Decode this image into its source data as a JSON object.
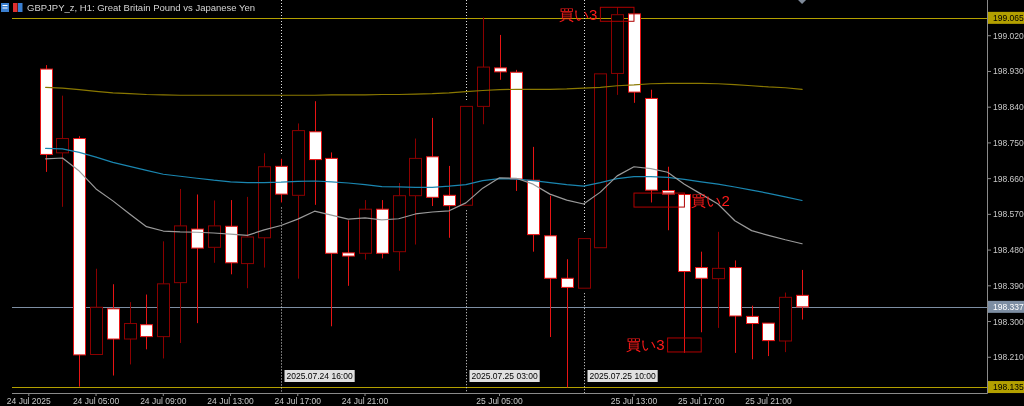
{
  "chart_data": {
    "type": "candlestick",
    "title": "GBPJPY_z, H1: Great Britain Pound vs Japanese Yen",
    "x": [
      "2025-07-24T02:00",
      "2025-07-24T03:00",
      "2025-07-24T04:00",
      "2025-07-24T05:00",
      "2025-07-24T06:00",
      "2025-07-24T07:00",
      "2025-07-24T08:00",
      "2025-07-24T09:00",
      "2025-07-24T10:00",
      "2025-07-24T11:00",
      "2025-07-24T12:00",
      "2025-07-24T13:00",
      "2025-07-24T14:00",
      "2025-07-24T15:00",
      "2025-07-24T16:00",
      "2025-07-24T17:00",
      "2025-07-24T18:00",
      "2025-07-24T19:00",
      "2025-07-24T20:00",
      "2025-07-24T21:00",
      "2025-07-24T22:00",
      "2025-07-24T23:00",
      "2025-07-25T00:00",
      "2025-07-25T01:00",
      "2025-07-25T02:00",
      "2025-07-25T03:00",
      "2025-07-25T04:00",
      "2025-07-25T05:00",
      "2025-07-25T06:00",
      "2025-07-25T07:00",
      "2025-07-25T08:00",
      "2025-07-25T09:00",
      "2025-07-25T10:00",
      "2025-07-25T11:00",
      "2025-07-25T12:00",
      "2025-07-25T13:00",
      "2025-07-25T14:00",
      "2025-07-25T15:00",
      "2025-07-25T16:00",
      "2025-07-25T17:00",
      "2025-07-25T18:00",
      "2025-07-25T19:00",
      "2025-07-25T20:00",
      "2025-07-25T21:00",
      "2025-07-25T22:00",
      "2025-07-25T23:00"
    ],
    "ohlc": [
      [
        198.936,
        198.946,
        198.677,
        198.721
      ],
      [
        198.725,
        198.869,
        198.589,
        198.761
      ],
      [
        198.761,
        198.767,
        198.136,
        198.216
      ],
      [
        198.217,
        198.433,
        198.217,
        198.336
      ],
      [
        198.332,
        198.394,
        198.164,
        198.256
      ],
      [
        198.256,
        198.349,
        198.192,
        198.295
      ],
      [
        198.292,
        198.368,
        198.23,
        198.262
      ],
      [
        198.262,
        198.502,
        198.207,
        198.395
      ],
      [
        198.398,
        198.634,
        198.246,
        198.541
      ],
      [
        198.533,
        198.62,
        198.296,
        198.485
      ],
      [
        198.487,
        198.605,
        198.448,
        198.541
      ],
      [
        198.54,
        198.606,
        198.419,
        198.448
      ],
      [
        198.446,
        198.614,
        198.384,
        198.513
      ],
      [
        198.511,
        198.724,
        198.436,
        198.69
      ],
      [
        198.691,
        198.71,
        198.6,
        198.621
      ],
      [
        198.618,
        198.799,
        198.408,
        198.781
      ],
      [
        198.778,
        198.855,
        198.594,
        198.708
      ],
      [
        198.711,
        198.726,
        198.288,
        198.472
      ],
      [
        198.473,
        198.555,
        198.39,
        198.465
      ],
      [
        198.472,
        198.606,
        198.456,
        198.583
      ],
      [
        198.583,
        198.606,
        198.459,
        198.472
      ],
      [
        198.476,
        198.649,
        198.428,
        198.617
      ],
      [
        198.617,
        198.761,
        198.494,
        198.711
      ],
      [
        198.715,
        198.813,
        198.591,
        198.613
      ],
      [
        198.618,
        198.692,
        198.511,
        198.592
      ],
      [
        198.593,
        198.842,
        198.593,
        198.842
      ],
      [
        198.842,
        199.066,
        198.797,
        198.941
      ],
      [
        198.939,
        199.022,
        198.909,
        198.929
      ],
      [
        198.928,
        198.934,
        198.629,
        198.659
      ],
      [
        198.656,
        198.74,
        198.476,
        198.519
      ],
      [
        198.516,
        198.617,
        198.261,
        198.409
      ],
      [
        198.409,
        198.457,
        198.134,
        198.386
      ],
      [
        198.384,
        198.509,
        198.384,
        198.509
      ],
      [
        198.486,
        198.924,
        198.486,
        198.924
      ],
      [
        198.925,
        199.092,
        198.871,
        199.073
      ],
      [
        199.075,
        199.075,
        198.851,
        198.878
      ],
      [
        198.862,
        198.884,
        198.6,
        198.631
      ],
      [
        198.63,
        198.69,
        198.53,
        198.621
      ],
      [
        198.62,
        198.62,
        198.221,
        198.426
      ],
      [
        198.436,
        198.476,
        198.273,
        198.409
      ],
      [
        198.408,
        198.526,
        198.284,
        198.434
      ],
      [
        198.436,
        198.454,
        198.221,
        198.314
      ],
      [
        198.313,
        198.34,
        198.205,
        198.295
      ],
      [
        198.296,
        198.296,
        198.213,
        198.252
      ],
      [
        198.251,
        198.373,
        198.223,
        198.361
      ],
      [
        198.366,
        198.43,
        198.305,
        198.337
      ]
    ],
    "colors": [
      "#e81414",
      "#8b0000",
      "#e81414",
      "#8b0000",
      "#e81414",
      "#8b0000",
      "#e81414",
      "#8b0000",
      "#8b0000",
      "#e81414",
      "#8b0000",
      "#e81414",
      "#8b0000",
      "#8b0000",
      "#e81414",
      "#8b0000",
      "#e81414",
      "#e81414",
      "#e81414",
      "#8b0000",
      "#e81414",
      "#8b0000",
      "#8b0000",
      "#e81414",
      "#e81414",
      "#8b0000",
      "#8b0000",
      "#e81414",
      "#e81414",
      "#e81414",
      "#e81414",
      "#e81414",
      "#8b0000",
      "#8b0000",
      "#8b0000",
      "#e81414",
      "#e81414",
      "#e81414",
      "#e81414",
      "#e81414",
      "#8b0000",
      "#e81414",
      "#e81414",
      "#e81414",
      "#8b0000",
      "#e81414"
    ],
    "series": [
      {
        "type": "line",
        "color": "#8a7800",
        "values": [
          198.89,
          198.888,
          198.884,
          198.88,
          198.876,
          198.874,
          198.872,
          198.871,
          198.87,
          198.87,
          198.87,
          198.87,
          198.87,
          198.87,
          198.87,
          198.87,
          198.87,
          198.871,
          198.871,
          198.871,
          198.872,
          198.872,
          198.873,
          198.874,
          198.876,
          198.879,
          198.882,
          198.884,
          198.885,
          198.885,
          198.885,
          198.886,
          198.888,
          198.89,
          198.894,
          198.896,
          198.899,
          198.9,
          198.9,
          198.9,
          198.899,
          198.897,
          198.894,
          198.891,
          198.889,
          198.885
        ]
      },
      {
        "type": "line",
        "color": "#1a86b0",
        "values": [
          198.736,
          198.735,
          198.726,
          198.714,
          198.701,
          198.691,
          198.681,
          198.671,
          198.666,
          198.661,
          198.656,
          198.652,
          198.65,
          198.65,
          198.651,
          198.653,
          198.654,
          198.652,
          198.649,
          198.645,
          198.64,
          198.639,
          198.638,
          198.638,
          198.641,
          198.645,
          198.655,
          198.66,
          198.659,
          198.655,
          198.65,
          198.645,
          198.641,
          198.65,
          198.66,
          198.665,
          198.665,
          198.663,
          198.658,
          198.652,
          198.646,
          198.639,
          198.631,
          198.623,
          198.614,
          198.605
        ]
      },
      {
        "type": "line",
        "color": "#9a9a9a",
        "values": [
          198.71,
          198.712,
          198.679,
          198.634,
          198.604,
          198.571,
          198.539,
          198.528,
          198.526,
          198.525,
          198.523,
          198.52,
          198.517,
          198.531,
          198.542,
          198.558,
          198.578,
          198.568,
          198.558,
          198.561,
          198.556,
          198.559,
          198.571,
          198.576,
          198.579,
          198.599,
          198.636,
          198.662,
          198.661,
          198.646,
          198.621,
          198.606,
          198.596,
          198.626,
          198.667,
          198.69,
          198.685,
          198.676,
          198.646,
          198.621,
          198.596,
          198.554,
          198.529,
          198.517,
          198.506,
          198.496
        ]
      }
    ],
    "xlim": [
      "2025-07-24T00:00",
      "2025-07-26T10:00"
    ],
    "xticks": [
      {
        "value": "2025-07-24T01:00",
        "label": "24 Jul 2025"
      },
      {
        "value": "2025-07-24T05:00",
        "label": "24 Jul 05:00"
      },
      {
        "value": "2025-07-24T09:00",
        "label": "24 Jul 09:00"
      },
      {
        "value": "2025-07-24T13:00",
        "label": "24 Jul 13:00"
      },
      {
        "value": "2025-07-24T17:00",
        "label": "24 Jul 17:00"
      },
      {
        "value": "2025-07-24T21:00",
        "label": "24 Jul 21:00"
      },
      {
        "value": "2025-07-25T05:00",
        "label": "25 Jul 05:00"
      },
      {
        "value": "2025-07-25T13:00",
        "label": "25 Jul 13:00"
      },
      {
        "value": "2025-07-25T17:00",
        "label": "25 Jul 17:00"
      },
      {
        "value": "2025-07-25T21:00",
        "label": "25 Jul 21:00"
      }
    ],
    "ylim": [
      198.12,
      199.11
    ],
    "yticks": [
      {
        "value": 199.02,
        "label": "199.020"
      },
      {
        "value": 198.93,
        "label": "198.930"
      },
      {
        "value": 198.84,
        "label": "198.840"
      },
      {
        "value": 198.75,
        "label": "198.750"
      },
      {
        "value": 198.66,
        "label": "198.660"
      },
      {
        "value": 198.57,
        "label": "198.570"
      },
      {
        "value": 198.48,
        "label": "198.480"
      },
      {
        "value": 198.39,
        "label": "198.390"
      },
      {
        "value": 198.3,
        "label": "198.300"
      },
      {
        "value": 198.21,
        "label": "198.210"
      }
    ],
    "ref_lines": [
      {
        "axis": "y",
        "value": 199.065,
        "label": "199.065",
        "color": "#b3a000",
        "line_style": "solid"
      },
      {
        "axis": "y",
        "value": 198.135,
        "label": "198.135",
        "color": "#b3a000",
        "line_style": "solid"
      },
      {
        "axis": "y",
        "value": 198.337,
        "label": "198.337",
        "color": "#7d8ea3",
        "line_style": "solid"
      },
      {
        "axis": "x",
        "value": "2025-07-24T16:00",
        "label": "2025.07.24 16:00",
        "color": "#e0e0e0",
        "line_style": "dotted"
      },
      {
        "axis": "x",
        "value": "2025-07-25T03:00",
        "label": "2025.07.25 03:00",
        "color": "#e0e0e0",
        "line_style": "dotted"
      },
      {
        "axis": "x",
        "value": "2025-07-25T10:00",
        "label": "2025.07.25 10:00",
        "color": "#e0e0e0",
        "line_style": "dotted"
      }
    ],
    "annotations": [
      {
        "text": "買い3",
        "x": "2025-07-25T11:00",
        "y": 199.074
      },
      "買い2",
      "買い3"
    ]
  }
}
